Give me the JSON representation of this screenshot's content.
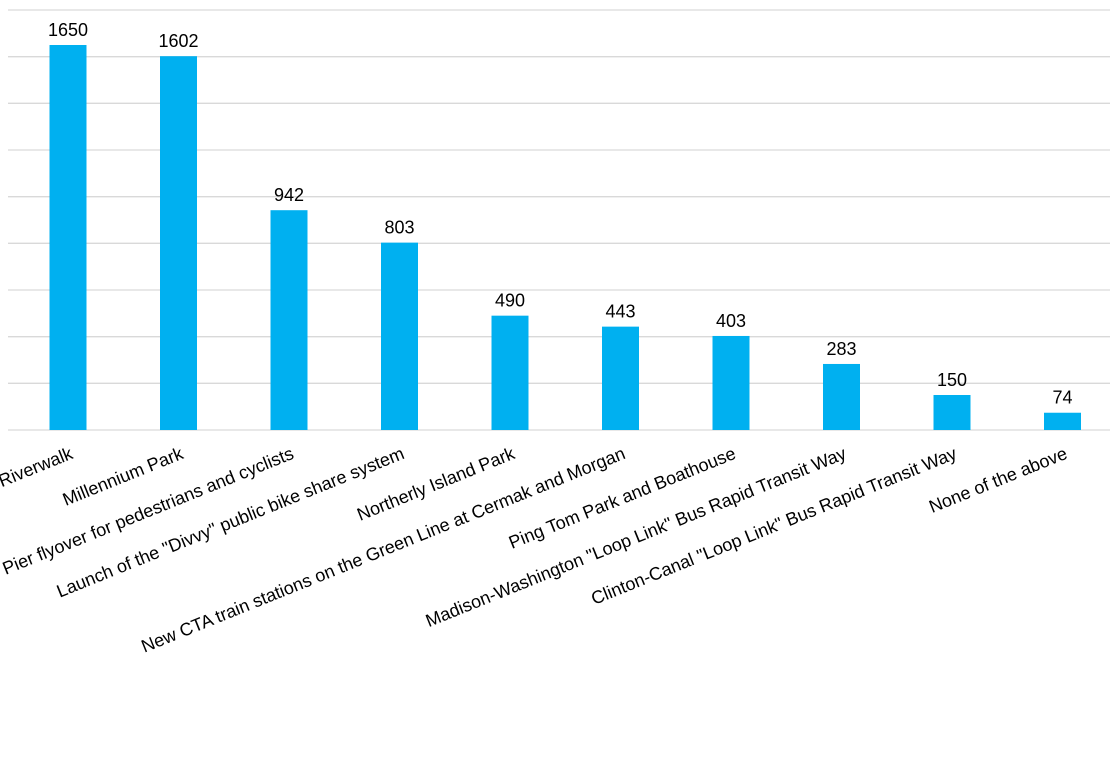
{
  "chart_data": {
    "type": "bar",
    "title": "",
    "xlabel": "",
    "ylabel": "",
    "categories": [
      "Chicago Riverwalk",
      "Millennium Park",
      "Navy Pier flyover for pedestrians and cyclists",
      "Launch of the \"Divvy\" public bike share system",
      "Northerly Island Park",
      "New CTA train stations on the Green Line at Cermak and Morgan",
      "Ping Tom Park and Boathouse",
      "Madison-Washington \"Loop Link\" Bus Rapid Transit Way",
      "Clinton-Canal \"Loop Link\" Bus Rapid Transit Way",
      "None of the above"
    ],
    "values": [
      1650,
      1602,
      942,
      803,
      490,
      443,
      403,
      283,
      150,
      74
    ],
    "ylim": [
      0,
      1800
    ],
    "grid": true,
    "data_labels": true,
    "colors": {
      "bar": "#00b0f0",
      "grid": "#d9d9d9"
    }
  }
}
